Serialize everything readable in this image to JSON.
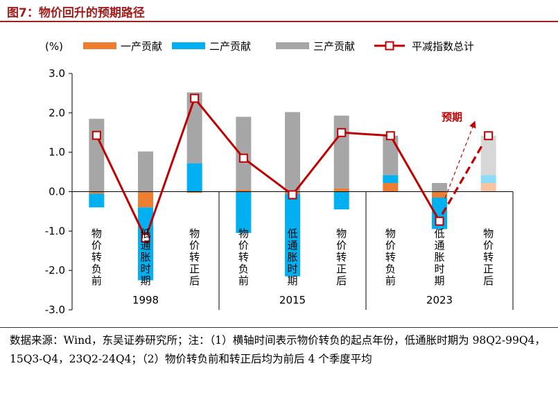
{
  "figure_title": "图7：物价回升的预期路径",
  "source_note": "数据来源：Wind，东吴证券研究所；注：（1）横轴时间表示物价转负的起点年份，低通胀时期为 98Q2-99Q4，15Q3-Q4，23Q2-24Q4；（2）物价转负前和转正后均为前后 4 个季度平均",
  "colors": {
    "primary": "#ed7d31",
    "secondary": "#00b0f0",
    "tertiary": "#a6a6a6",
    "line": "#c00000",
    "title": "#a51c1c"
  },
  "chart_data": {
    "type": "bar",
    "stacked": true,
    "unit_label": "(%)",
    "ylim": [
      -3.0,
      3.0
    ],
    "yticks": [
      "3.0",
      "2.0",
      "1.0",
      "0.0",
      "-1.0",
      "-2.0",
      "-3.0"
    ],
    "groups": [
      "1998",
      "2015",
      "2023"
    ],
    "categories": [
      "物价转负前",
      "低通胀时期",
      "物价转正后",
      "物价转负前",
      "低通胀时期",
      "物价转正后",
      "物价转负前",
      "低通胀时期",
      "物价转正后"
    ],
    "legend_position": "top",
    "grid": false,
    "series": [
      {
        "name": "一产贡献",
        "type": "bar",
        "values": [
          -0.05,
          -0.4,
          -0.03,
          0.05,
          -0.05,
          0.08,
          0.22,
          -0.15,
          0.22
        ]
      },
      {
        "name": "二产贡献",
        "type": "bar",
        "values": [
          -0.35,
          -1.85,
          0.72,
          -1.05,
          -2.1,
          -0.45,
          0.2,
          -0.8,
          0.2
        ]
      },
      {
        "name": "三产贡献",
        "type": "bar",
        "values": [
          1.85,
          1.02,
          1.8,
          1.85,
          2.02,
          1.85,
          1.0,
          0.22,
          1.0
        ]
      },
      {
        "name": "平减指数总计",
        "type": "line",
        "values": [
          1.43,
          -1.18,
          2.37,
          0.85,
          -0.08,
          1.5,
          1.42,
          -0.75,
          1.42
        ]
      }
    ],
    "projected_category_index": 8,
    "annotations": [
      {
        "text": "预期"
      }
    ]
  }
}
